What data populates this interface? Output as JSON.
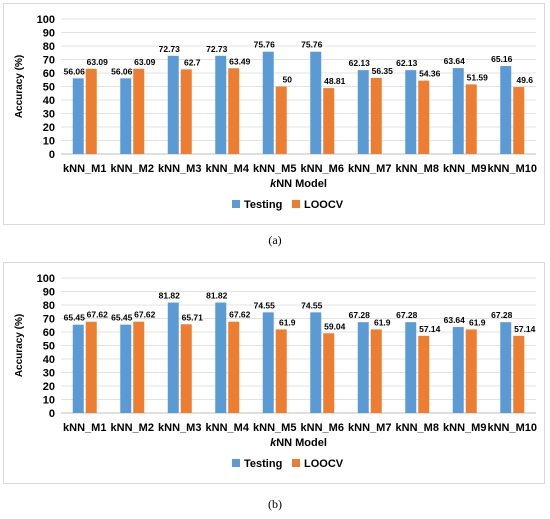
{
  "charts": [
    {
      "caption": "(a)",
      "chart_data": {
        "type": "bar",
        "categories": [
          "kNN_M1",
          "kNN_M2",
          "kNN_M3",
          "kNN_M4",
          "kNN_M5",
          "kNN_M6",
          "kNN_M7",
          "kNN_M8",
          "kNN_M9",
          "kNN_M10"
        ],
        "series": [
          {
            "name": "Testing",
            "color": "#5b9bd5",
            "values": [
              56.06,
              56.06,
              72.73,
              72.73,
              75.76,
              75.76,
              62.13,
              62.13,
              63.64,
              65.16
            ]
          },
          {
            "name": "LOOCV",
            "color": "#ed7d31",
            "values": [
              63.09,
              63.09,
              62.7,
              63.49,
              50,
              48.81,
              56.35,
              54.36,
              51.59,
              49.6
            ]
          }
        ],
        "xlabel_italic": "k",
        "xlabel_rest": "NN Model",
        "ylabel": "Accuracy (%)",
        "ylim": [
          0,
          100
        ],
        "yticks": [
          0,
          10,
          20,
          30,
          40,
          50,
          60,
          70,
          80,
          90,
          100
        ],
        "legend_position": "bottom-center"
      }
    },
    {
      "caption": "(b)",
      "chart_data": {
        "type": "bar",
        "categories": [
          "kNN_M1",
          "kNN_M2",
          "kNN_M3",
          "kNN_M4",
          "kNN_M5",
          "kNN_M6",
          "kNN_M7",
          "kNN_M8",
          "kNN_M9",
          "kNN_M10"
        ],
        "series": [
          {
            "name": "Testing",
            "color": "#5b9bd5",
            "values": [
              65.45,
              65.45,
              81.82,
              81.82,
              74.55,
              74.55,
              67.28,
              67.28,
              63.64,
              67.28
            ]
          },
          {
            "name": "LOOCV",
            "color": "#ed7d31",
            "values": [
              67.62,
              67.62,
              65.71,
              67.62,
              61.9,
              59.04,
              61.9,
              57.14,
              61.9,
              57.14
            ]
          }
        ],
        "xlabel_italic": "k",
        "xlabel_rest": "NN Model",
        "ylabel": "Accuracy (%)",
        "ylim": [
          0,
          100
        ],
        "yticks": [
          0,
          10,
          20,
          30,
          40,
          50,
          60,
          70,
          80,
          90,
          100
        ],
        "legend_position": "bottom-center"
      }
    }
  ]
}
